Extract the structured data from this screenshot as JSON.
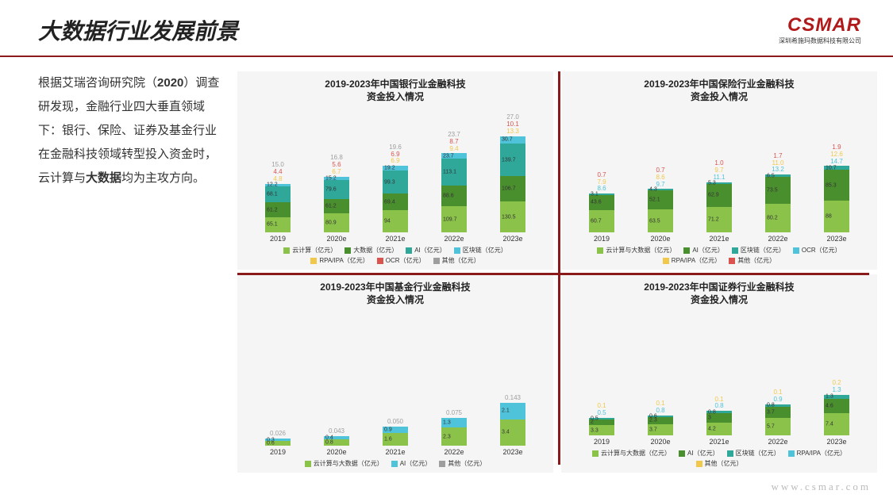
{
  "title": "大数据行业发展前景",
  "logo": "CSMAR",
  "logo_sub": "深圳希施玛数据科技有限公司",
  "side_html": "根据艾瑞咨询研究院（<b>2020</b>）调查研发现，金融行业四大垂直领域下：银行、保险、证券及基金行业在金融科技领域转型投入资金时，云计算与<b>大数据</b>均为主攻方向。",
  "footer": "www.csmar.com",
  "colors": {
    "green": "#8bc34a",
    "dgreen": "#4a8f2e",
    "teal": "#2fa89a",
    "cyan": "#4fc3d9",
    "yellow": "#f2c84b",
    "red": "#d9534f",
    "grey": "#9e9e9e",
    "bg": "#f5f5f5",
    "brand": "#8b1a1a",
    "logo": "#b11a1a"
  },
  "charts": [
    {
      "title": "2019-2023年中国银行业金融科技\n资金投入情况",
      "cats": [
        "2019",
        "2020e",
        "2021e",
        "2022e",
        "2023e"
      ],
      "scale": 0.85,
      "legend": [
        {
          "l": "云计算（亿元）",
          "c": "green"
        },
        {
          "l": "大数据（亿元）",
          "c": "dgreen"
        },
        {
          "l": "AI（亿元）",
          "c": "teal"
        },
        {
          "l": "区块链（亿元）",
          "c": "cyan"
        },
        {
          "l": "RPA/IPA（亿元）",
          "c": "yellow"
        },
        {
          "l": "OCR（亿元）",
          "c": "red"
        },
        {
          "l": "其他（亿元）",
          "c": "grey"
        }
      ],
      "stacks": [
        {
          "above": [
            {
              "v": "15.0",
              "c": "grey"
            },
            {
              "v": "4.4",
              "c": "red"
            },
            {
              "v": "4.8",
              "c": "yellow"
            }
          ],
          "segs": [
            {
              "v": 65.1,
              "c": "green"
            },
            {
              "v": 61.2,
              "c": "dgreen"
            },
            {
              "v": 68.1,
              "c": "teal"
            },
            {
              "v": 12.2,
              "c": "cyan"
            }
          ]
        },
        {
          "above": [
            {
              "v": "16.8",
              "c": "grey"
            },
            {
              "v": "5.6",
              "c": "red"
            },
            {
              "v": "6.7",
              "c": "yellow"
            }
          ],
          "segs": [
            {
              "v": 80.9,
              "c": "green"
            },
            {
              "v": 61.2,
              "c": "dgreen"
            },
            {
              "v": 79.6,
              "c": "teal"
            },
            {
              "v": 15.2,
              "c": "cyan"
            }
          ]
        },
        {
          "above": [
            {
              "v": "19.6",
              "c": "grey"
            },
            {
              "v": "6.9",
              "c": "red"
            },
            {
              "v": "6.9",
              "c": "yellow"
            }
          ],
          "segs": [
            {
              "v": 94.0,
              "c": "green"
            },
            {
              "v": 69.4,
              "c": "dgreen"
            },
            {
              "v": 99.3,
              "c": "teal"
            },
            {
              "v": 19.2,
              "c": "cyan"
            }
          ]
        },
        {
          "above": [
            {
              "v": "23.7",
              "c": "grey"
            },
            {
              "v": "8.7",
              "c": "red"
            },
            {
              "v": "9.4",
              "c": "yellow"
            }
          ],
          "segs": [
            {
              "v": 109.7,
              "c": "green"
            },
            {
              "v": 88.6,
              "c": "dgreen"
            },
            {
              "v": 113.1,
              "c": "teal"
            },
            {
              "v": 23.7,
              "c": "cyan"
            }
          ]
        },
        {
          "above": [
            {
              "v": "27.0",
              "c": "grey"
            },
            {
              "v": "10.1",
              "c": "red"
            },
            {
              "v": "13.3",
              "c": "yellow"
            }
          ],
          "segs": [
            {
              "v": 130.5,
              "c": "green"
            },
            {
              "v": 106.7,
              "c": "dgreen"
            },
            {
              "v": 139.7,
              "c": "teal"
            },
            {
              "v": 30.7,
              "c": "cyan"
            }
          ]
        }
      ]
    },
    {
      "title": "2019-2023年中国保险行业金融科技\n资金投入情况",
      "cats": [
        "2019",
        "2020e",
        "2021e",
        "2022e",
        "2023e"
      ],
      "scale": 1.3,
      "legend": [
        {
          "l": "云计算与大数据（亿元）",
          "c": "green"
        },
        {
          "l": "AI（亿元）",
          "c": "dgreen"
        },
        {
          "l": "区块链（亿元）",
          "c": "teal"
        },
        {
          "l": "OCR（亿元）",
          "c": "cyan"
        },
        {
          "l": "RPA/IPA（亿元）",
          "c": "yellow"
        },
        {
          "l": "其他（亿元）",
          "c": "red"
        }
      ],
      "stacks": [
        {
          "above": [
            {
              "v": "0.7",
              "c": "red"
            },
            {
              "v": "7.9",
              "c": "yellow"
            },
            {
              "v": "8.6",
              "c": "cyan"
            }
          ],
          "segs": [
            {
              "v": 60.7,
              "c": "green"
            },
            {
              "v": 43.6,
              "c": "dgreen"
            },
            {
              "v": 3.1,
              "c": "teal"
            }
          ]
        },
        {
          "above": [
            {
              "v": "0.7",
              "c": "red"
            },
            {
              "v": "8.6",
              "c": "yellow"
            },
            {
              "v": "9.7",
              "c": "cyan"
            }
          ],
          "segs": [
            {
              "v": 63.5,
              "c": "green"
            },
            {
              "v": 52.1,
              "c": "dgreen"
            },
            {
              "v": 4.3,
              "c": "teal"
            }
          ]
        },
        {
          "above": [
            {
              "v": "1.0",
              "c": "red"
            },
            {
              "v": "9.7",
              "c": "yellow"
            },
            {
              "v": "11.1",
              "c": "cyan"
            }
          ],
          "segs": [
            {
              "v": 71.2,
              "c": "green"
            },
            {
              "v": 62.9,
              "c": "dgreen"
            },
            {
              "v": 5.3,
              "c": "teal"
            }
          ]
        },
        {
          "above": [
            {
              "v": "1.7",
              "c": "red"
            },
            {
              "v": "11.0",
              "c": "yellow"
            },
            {
              "v": "13.2",
              "c": "cyan"
            }
          ],
          "segs": [
            {
              "v": 80.2,
              "c": "green"
            },
            {
              "v": 73.5,
              "c": "dgreen"
            },
            {
              "v": 6.5,
              "c": "teal"
            }
          ]
        },
        {
          "above": [
            {
              "v": "1.9",
              "c": "red"
            },
            {
              "v": "12.6",
              "c": "yellow"
            },
            {
              "v": "14.7",
              "c": "cyan"
            }
          ],
          "segs": [
            {
              "v": 88.0,
              "c": "green"
            },
            {
              "v": 85.3,
              "c": "dgreen"
            },
            {
              "v": 10.7,
              "c": "teal"
            }
          ]
        }
      ]
    },
    {
      "title": "2019-2023年中国基金行业金融科技\n资金投入情况",
      "cats": [
        "2019",
        "2020e",
        "2021e",
        "2022e",
        "2023e"
      ],
      "scale": 28,
      "legend": [
        {
          "l": "云计算与大数据（亿元）",
          "c": "green"
        },
        {
          "l": "AI（亿元）",
          "c": "cyan"
        },
        {
          "l": "其他（亿元）",
          "c": "grey"
        }
      ],
      "stacks": [
        {
          "above": [
            {
              "v": "0.026",
              "c": "grey"
            }
          ],
          "segs": [
            {
              "v": 0.6,
              "c": "green"
            },
            {
              "v": 0.3,
              "c": "cyan"
            }
          ]
        },
        {
          "above": [
            {
              "v": "0.043",
              "c": "grey"
            }
          ],
          "segs": [
            {
              "v": 0.8,
              "c": "green"
            },
            {
              "v": 0.4,
              "c": "cyan"
            }
          ]
        },
        {
          "above": [
            {
              "v": "0.050",
              "c": "grey"
            }
          ],
          "segs": [
            {
              "v": 1.6,
              "c": "green"
            },
            {
              "v": 0.9,
              "c": "cyan"
            }
          ]
        },
        {
          "above": [
            {
              "v": "0.075",
              "c": "grey"
            }
          ],
          "segs": [
            {
              "v": 2.3,
              "c": "green"
            },
            {
              "v": 1.3,
              "c": "cyan"
            }
          ]
        },
        {
          "above": [
            {
              "v": "0.143",
              "c": "grey"
            }
          ],
          "segs": [
            {
              "v": 3.4,
              "c": "green"
            },
            {
              "v": 2.1,
              "c": "cyan"
            }
          ]
        }
      ]
    },
    {
      "title": "2019-2023年中国证券行业金融科技\n资金投入情况",
      "cats": [
        "2019",
        "2020e",
        "2021e",
        "2022e",
        "2023e"
      ],
      "scale": 11,
      "legend": [
        {
          "l": "云计算与大数据（亿元）",
          "c": "green"
        },
        {
          "l": "AI（亿元）",
          "c": "dgreen"
        },
        {
          "l": "区块链（亿元）",
          "c": "teal"
        },
        {
          "l": "RPA/IPA（亿元）",
          "c": "cyan"
        },
        {
          "l": "其他（亿元）",
          "c": "yellow"
        }
      ],
      "stacks": [
        {
          "above": [
            {
              "v": "0.1",
              "c": "yellow"
            },
            {
              "v": "0.5",
              "c": "cyan"
            }
          ],
          "segs": [
            {
              "v": 3.3,
              "c": "green"
            },
            {
              "v": 2.0,
              "c": "dgreen"
            },
            {
              "v": 0.5,
              "c": "teal"
            }
          ]
        },
        {
          "above": [
            {
              "v": "0.1",
              "c": "yellow"
            },
            {
              "v": "0.8",
              "c": "cyan"
            }
          ],
          "segs": [
            {
              "v": 3.7,
              "c": "green"
            },
            {
              "v": 2.3,
              "c": "dgreen"
            },
            {
              "v": 0.6,
              "c": "teal"
            }
          ]
        },
        {
          "above": [
            {
              "v": "0.1",
              "c": "yellow"
            },
            {
              "v": "0.8",
              "c": "cyan"
            }
          ],
          "segs": [
            {
              "v": 4.2,
              "c": "green"
            },
            {
              "v": 3.0,
              "c": "dgreen"
            },
            {
              "v": 0.8,
              "c": "teal"
            }
          ]
        },
        {
          "above": [
            {
              "v": "0.1",
              "c": "yellow"
            },
            {
              "v": "0.9",
              "c": "cyan"
            }
          ],
          "segs": [
            {
              "v": 5.7,
              "c": "green"
            },
            {
              "v": 3.7,
              "c": "dgreen"
            },
            {
              "v": 0.8,
              "c": "teal"
            }
          ]
        },
        {
          "above": [
            {
              "v": "0.2",
              "c": "yellow"
            },
            {
              "v": "1.3",
              "c": "cyan"
            }
          ],
          "segs": [
            {
              "v": 7.4,
              "c": "green"
            },
            {
              "v": 4.6,
              "c": "dgreen"
            },
            {
              "v": 1.3,
              "c": "teal"
            }
          ]
        }
      ]
    }
  ]
}
